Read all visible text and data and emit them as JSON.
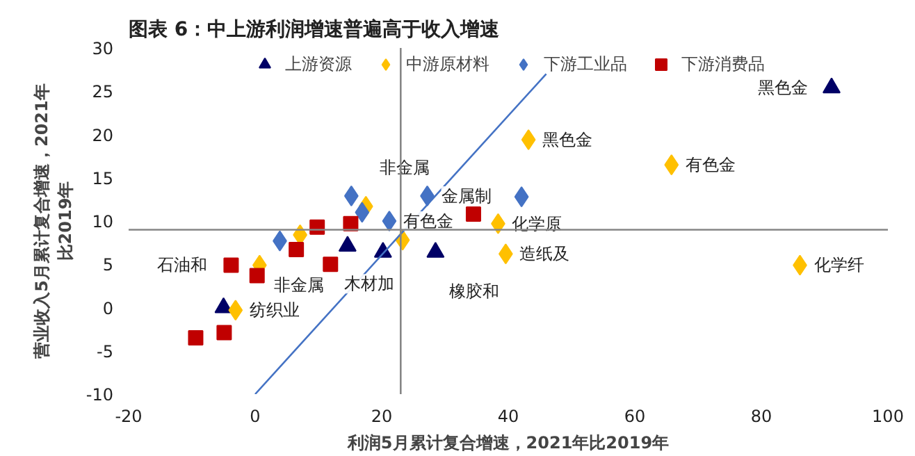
{
  "chart_data": {
    "type": "scatter",
    "title": "图表 6：中上游利润增速普遍高于收入增速",
    "xlabel": "利润5月累计复合增速，2021年比2019年",
    "ylabel": "营业收入5月累计复合增速，2021年比2019年",
    "xlim": [
      -20,
      100
    ],
    "xticks": [
      -20,
      0,
      20,
      40,
      60,
      80,
      100
    ],
    "ylim": [
      -10,
      30
    ],
    "yticks": [
      -10,
      -5,
      0,
      5,
      10,
      15,
      20,
      25,
      30
    ],
    "grid": false,
    "legend": "top",
    "series": [
      {
        "name": "上游资源",
        "color": "#000066",
        "marker": "triangle",
        "x": [
          -5,
          14.6,
          20.2,
          28.5,
          91.1
        ],
        "values": [
          0,
          7.1,
          6.4,
          6.4,
          25.4
        ]
      },
      {
        "name": "中游原材料",
        "color": "#ffc000",
        "marker": "diamond",
        "x": [
          -3.1,
          0.7,
          7.1,
          17.5,
          23.3,
          38.4,
          39.6,
          43.2,
          65.8,
          86.1
        ],
        "values": [
          -0.3,
          4.9,
          8.4,
          11.7,
          7.8,
          9.7,
          6.2,
          19.4,
          16.5,
          4.9
        ]
      },
      {
        "name": "下游工业品",
        "color": "#4472c4",
        "marker": "diamond",
        "x": [
          3.9,
          15.2,
          16.9,
          21.2,
          27.2,
          42.1
        ],
        "values": [
          7.7,
          12.9,
          11.0,
          10.0,
          12.9,
          12.8
        ]
      },
      {
        "name": "下游消费品",
        "color": "#c00000",
        "marker": "square",
        "x": [
          -9.4,
          -4.9,
          -3.8,
          0.3,
          6.5,
          9.8,
          11.9,
          15.1,
          34.5
        ],
        "values": [
          -3.5,
          -2.9,
          4.9,
          3.7,
          6.7,
          9.3,
          5.0,
          9.7,
          10.8
        ]
      },
      {
        "type": "line",
        "color": "#4472c4",
        "x": [
          0,
          46
        ],
        "values": [
          -10,
          27
        ]
      }
    ],
    "ref_lines": [
      {
        "axis": "x",
        "value": 23,
        "color": "#868686"
      },
      {
        "axis": "y",
        "value": 9,
        "color": "#868686"
      }
    ],
    "annotations": [
      {
        "text": "黑色金",
        "x": 91.1,
        "y": 25.4
      },
      {
        "text": "黑色金",
        "x": 43.2,
        "y": 19.4
      },
      {
        "text": "有色金",
        "x": 65.8,
        "y": 16.5
      },
      {
        "text": "化学原",
        "x": 38.4,
        "y": 9.7
      },
      {
        "text": "造纸及",
        "x": 39.6,
        "y": 6.2
      },
      {
        "text": "化学纤",
        "x": 86.1,
        "y": 4.9
      },
      {
        "text": "纺织业",
        "x": -3.1,
        "y": -0.3
      },
      {
        "text": "石油和",
        "x": -3.8,
        "y": 4.9
      },
      {
        "text": "木材加",
        "x": 11.9,
        "y": 5.0
      },
      {
        "text": "非金属",
        "x": 17.5,
        "y": 11.7
      },
      {
        "text": "非金属",
        "x": 14.6,
        "y": 7.1
      },
      {
        "text": "金属制",
        "x": 27.2,
        "y": 12.9
      },
      {
        "text": "有色金",
        "x": 21.2,
        "y": 10.0
      },
      {
        "text": "橡胶和",
        "x": 28.5,
        "y": 6.4
      }
    ]
  }
}
